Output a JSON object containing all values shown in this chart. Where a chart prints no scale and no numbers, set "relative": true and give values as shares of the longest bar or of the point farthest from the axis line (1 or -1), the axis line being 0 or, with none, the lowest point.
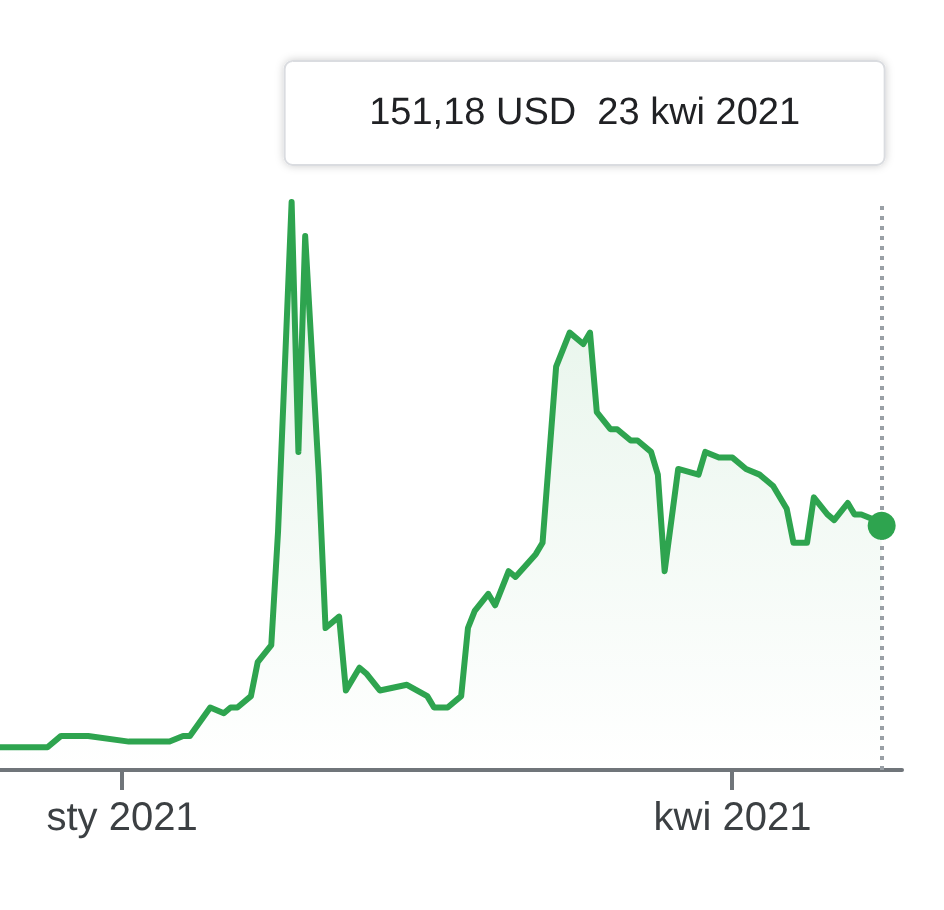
{
  "chart_data": {
    "type": "area",
    "relative": true,
    "color": "#2ea44f",
    "marker": "none",
    "x": [
      "2020-12-14",
      "2020-12-21",
      "2020-12-23",
      "2020-12-27",
      "2021-01-02",
      "2021-01-08",
      "2021-01-10",
      "2021-01-11",
      "2021-01-14",
      "2021-01-16",
      "2021-01-17",
      "2021-01-18",
      "2021-01-20",
      "2021-01-21",
      "2021-01-23",
      "2021-01-24",
      "2021-01-26",
      "2021-01-27",
      "2021-01-28",
      "2021-01-30",
      "2021-01-31",
      "2021-02-02",
      "2021-02-03",
      "2021-02-05",
      "2021-02-06",
      "2021-02-08",
      "2021-02-12",
      "2021-02-15",
      "2021-02-16",
      "2021-02-18",
      "2021-02-20",
      "2021-02-21",
      "2021-02-22",
      "2021-02-24",
      "2021-02-25",
      "2021-02-27",
      "2021-02-28",
      "2021-03-03",
      "2021-03-04",
      "2021-03-06",
      "2021-03-08",
      "2021-03-10",
      "2021-03-11",
      "2021-03-12",
      "2021-03-14",
      "2021-03-15",
      "2021-03-17",
      "2021-03-18",
      "2021-03-20",
      "2021-03-21",
      "2021-03-22",
      "2021-03-24",
      "2021-03-27",
      "2021-03-28",
      "2021-03-30",
      "2021-04-01",
      "2021-04-03",
      "2021-04-05",
      "2021-04-07",
      "2021-04-09",
      "2021-04-10",
      "2021-04-12",
      "2021-04-13",
      "2021-04-15",
      "2021-04-16",
      "2021-04-18",
      "2021-04-19",
      "2021-04-20",
      "2021-04-22",
      "2021-04-23"
    ],
    "values": [
      0.04,
      0.04,
      0.06,
      0.06,
      0.05,
      0.05,
      0.06,
      0.06,
      0.11,
      0.1,
      0.11,
      0.11,
      0.13,
      0.19,
      0.22,
      0.42,
      1.0,
      0.56,
      0.94,
      0.52,
      0.25,
      0.27,
      0.14,
      0.18,
      0.17,
      0.14,
      0.15,
      0.13,
      0.11,
      0.11,
      0.13,
      0.25,
      0.28,
      0.31,
      0.29,
      0.35,
      0.34,
      0.38,
      0.4,
      0.71,
      0.77,
      0.75,
      0.77,
      0.63,
      0.6,
      0.6,
      0.58,
      0.58,
      0.56,
      0.52,
      0.35,
      0.53,
      0.52,
      0.56,
      0.55,
      0.55,
      0.53,
      0.52,
      0.5,
      0.46,
      0.4,
      0.4,
      0.48,
      0.45,
      0.44,
      0.47,
      0.45,
      0.45,
      0.44,
      0.43
    ],
    "xlim": [
      "2020-12-14",
      "2021-04-26"
    ],
    "xticks": [
      {
        "value": "2021-01-01",
        "label": "sty 2021"
      },
      {
        "value": "2021-04-01",
        "label": "kwi 2021"
      }
    ],
    "ref_lines": [
      {
        "axis": "x",
        "value": "2021-04-23",
        "label": null,
        "color": "#9aa0a6",
        "line_style": "dotted"
      }
    ],
    "annotations": [
      "151,18 USD  23 kwi 2021"
    ]
  }
}
